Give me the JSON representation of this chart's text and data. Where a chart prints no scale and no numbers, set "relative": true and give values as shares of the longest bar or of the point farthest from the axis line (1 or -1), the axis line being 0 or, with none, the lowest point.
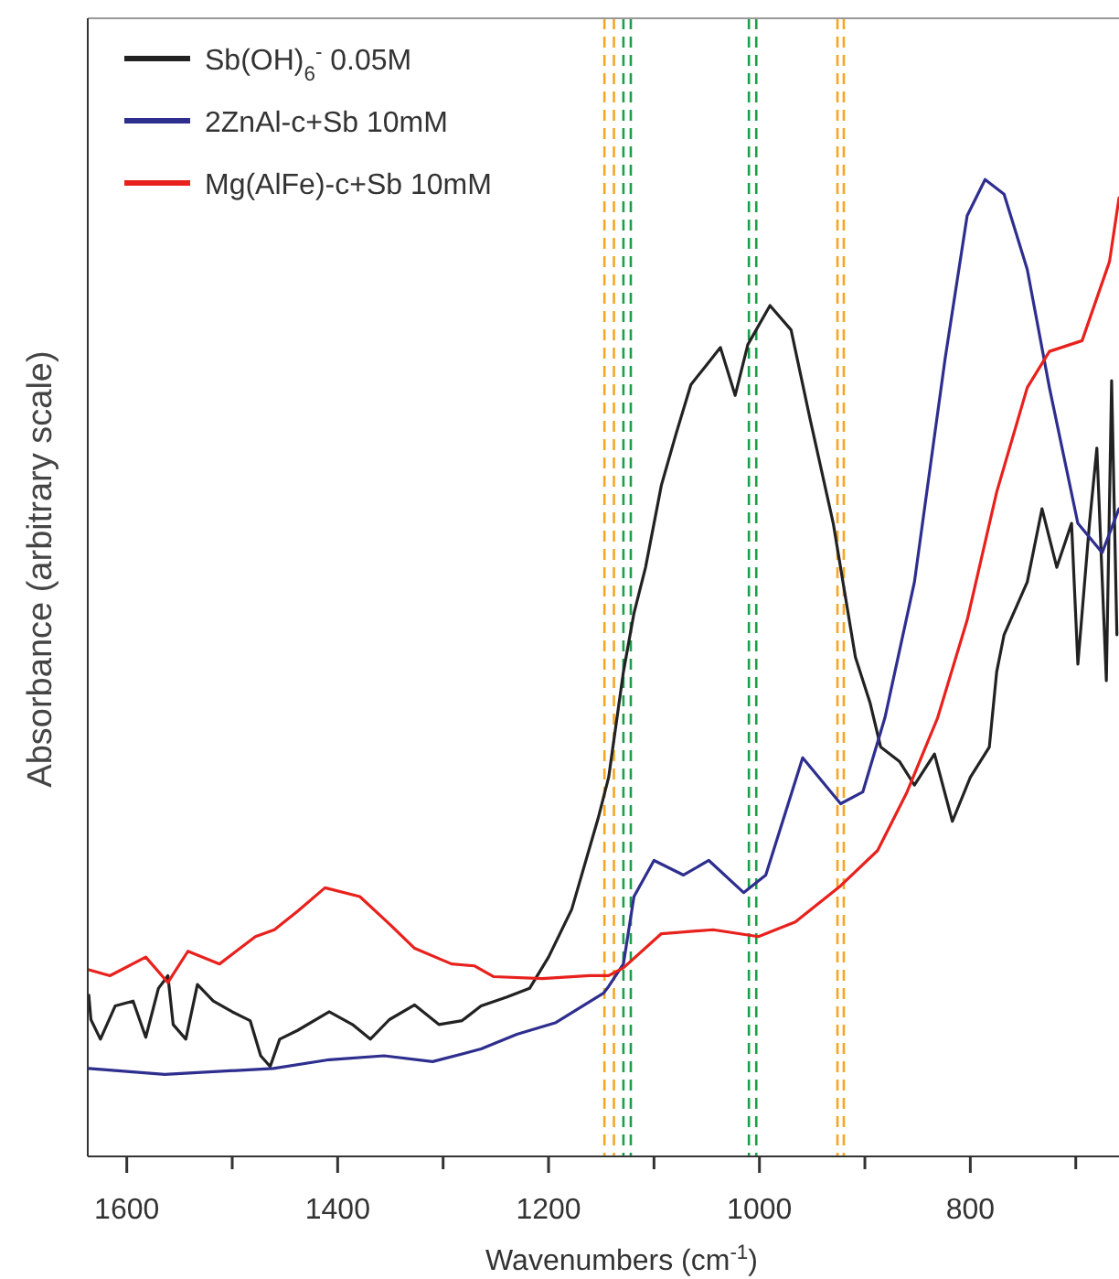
{
  "chart_data": {
    "type": "line",
    "relative": true,
    "xlabel": "Wavenumbers (cm$^{-1}$)",
    "ylabel": "Absorbance (arbitrary scale)",
    "xlim": [
      1637,
      659
    ],
    "xticks": [
      1600,
      {
        "value": 1500,
        "label": null
      },
      1400,
      {
        "value": 1300,
        "label": null
      },
      1200,
      {
        "value": 1100,
        "label": null
      },
      1000,
      {
        "value": 900,
        "label": null
      },
      800,
      {
        "value": 700,
        "label": null
      }
    ],
    "legend": "top left",
    "grid": false,
    "line_style": "solid",
    "marker": "none",
    "series": [
      {
        "name": "Sb(OH)$_{6}$$^{-}$ 0.05M",
        "color": "#222222",
        "x": [
          1636,
          1634,
          1625,
          1611,
          1594,
          1582,
          1570,
          1561,
          1556,
          1544,
          1533,
          1518,
          1500,
          1483,
          1473,
          1464,
          1455,
          1438,
          1408,
          1386,
          1369,
          1351,
          1327,
          1304,
          1282,
          1264,
          1240,
          1218,
          1200,
          1178,
          1153,
          1143,
          1129,
          1119,
          1108,
          1093,
          1079,
          1065,
          1051,
          1037,
          1023,
          1011,
          990,
          970,
          952,
          930,
          909,
          895,
          885,
          867,
          853,
          834,
          817,
          800,
          782,
          775,
          768,
          746,
          732,
          718,
          704,
          698,
          687,
          680,
          671,
          666,
          661
        ],
        "values": [
          0.165,
          0.14,
          0.12,
          0.154,
          0.159,
          0.122,
          0.172,
          0.185,
          0.135,
          0.12,
          0.176,
          0.159,
          0.148,
          0.139,
          0.103,
          0.092,
          0.12,
          0.129,
          0.148,
          0.135,
          0.12,
          0.14,
          0.155,
          0.135,
          0.139,
          0.154,
          0.163,
          0.172,
          0.204,
          0.253,
          0.346,
          0.388,
          0.496,
          0.556,
          0.603,
          0.687,
          0.74,
          0.79,
          0.809,
          0.828,
          0.779,
          0.831,
          0.871,
          0.846,
          0.755,
          0.648,
          0.511,
          0.464,
          0.419,
          0.404,
          0.38,
          0.412,
          0.343,
          0.388,
          0.419,
          0.496,
          0.534,
          0.588,
          0.663,
          0.603,
          0.648,
          0.504,
          0.648,
          0.725,
          0.487,
          0.794,
          0.534
        ]
      },
      {
        "name": "2ZnAl-c+Sb 10mM",
        "color": "#2e2e8f",
        "x": [
          1636,
          1564,
          1461,
          1408,
          1356,
          1310,
          1264,
          1230,
          1193,
          1148,
          1143,
          1129,
          1119,
          1100,
          1072,
          1048,
          1015,
          994,
          959,
          923,
          902,
          881,
          853,
          824,
          803,
          786,
          768,
          746,
          725,
          698,
          675,
          659
        ],
        "values": [
          0.09,
          0.084,
          0.09,
          0.099,
          0.103,
          0.097,
          0.11,
          0.125,
          0.137,
          0.167,
          0.174,
          0.197,
          0.266,
          0.303,
          0.288,
          0.303,
          0.27,
          0.288,
          0.408,
          0.361,
          0.373,
          0.449,
          0.588,
          0.816,
          0.963,
          1,
          0.985,
          0.908,
          0.787,
          0.648,
          0.618,
          0.663
        ]
      },
      {
        "name": "Mg(AlFe)-c+Sb 10mM",
        "color": "#e8211d",
        "x": [
          1636,
          1616,
          1582,
          1561,
          1542,
          1512,
          1478,
          1460,
          1438,
          1412,
          1379,
          1351,
          1327,
          1292,
          1270,
          1252,
          1206,
          1161,
          1143,
          1129,
          1093,
          1044,
          1001,
          966,
          923,
          888,
          860,
          831,
          803,
          775,
          746,
          725,
          694,
          668,
          659
        ],
        "values": [
          0.191,
          0.185,
          0.204,
          0.178,
          0.21,
          0.197,
          0.225,
          0.232,
          0.251,
          0.275,
          0.266,
          0.238,
          0.213,
          0.197,
          0.195,
          0.184,
          0.182,
          0.185,
          0.185,
          0.193,
          0.228,
          0.232,
          0.225,
          0.24,
          0.277,
          0.313,
          0.373,
          0.449,
          0.549,
          0.68,
          0.787,
          0.824,
          0.835,
          0.916,
          0.981
        ]
      }
    ],
    "ref_lines": [
      {
        "axis": "x",
        "value": 1147,
        "color": "#f5a623",
        "line_style": "dashed"
      },
      {
        "axis": "x",
        "value": 1138,
        "color": "#f5a623",
        "line_style": "dashed"
      },
      {
        "axis": "x",
        "value": 1129,
        "color": "#1aa04a",
        "line_style": "dashed"
      },
      {
        "axis": "x",
        "value": 1122,
        "color": "#1aa04a",
        "line_style": "dashed"
      },
      {
        "axis": "x",
        "value": 1010,
        "color": "#1aa04a",
        "line_style": "dashed"
      },
      {
        "axis": "x",
        "value": 1003,
        "color": "#1aa04a",
        "line_style": "dashed"
      },
      {
        "axis": "x",
        "value": 926,
        "color": "#f5a623",
        "line_style": "dashed"
      },
      {
        "axis": "x",
        "value": 920,
        "color": "#f5a623",
        "line_style": "dashed"
      }
    ]
  }
}
